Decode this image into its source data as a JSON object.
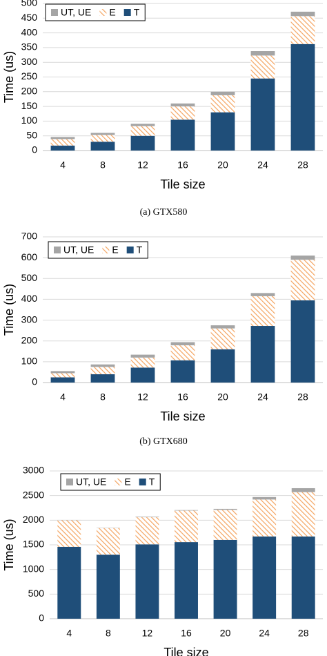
{
  "chart_data": [
    {
      "type": "stacked_bar",
      "caption": "(a)  GTX580",
      "xlabel": "Tile size",
      "ylabel": "Time (us)",
      "categories": [
        "4",
        "8",
        "12",
        "16",
        "20",
        "24",
        "28"
      ],
      "series": [
        {
          "name": "UT, UE",
          "color": "#a5a5a5",
          "values": [
            7,
            7,
            8,
            10,
            12,
            15,
            15
          ]
        },
        {
          "name": "E",
          "color": "#f4a460",
          "pattern": "hatch",
          "values": [
            22,
            23,
            33,
            45,
            58,
            78,
            95
          ]
        },
        {
          "name": "T",
          "color": "#1f4e79",
          "values": [
            17,
            30,
            50,
            105,
            130,
            245,
            362
          ]
        }
      ],
      "ylim": [
        0,
        500
      ],
      "yticks": [
        0,
        50,
        100,
        150,
        200,
        250,
        300,
        350,
        400,
        450,
        500
      ],
      "grid": true,
      "legend": "top-left"
    },
    {
      "type": "stacked_bar",
      "caption": "(b)  GTX680",
      "xlabel": "Tile size",
      "ylabel": "Time (us)",
      "categories": [
        "4",
        "8",
        "12",
        "16",
        "20",
        "24",
        "28"
      ],
      "series": [
        {
          "name": "UT, UE",
          "color": "#a5a5a5",
          "values": [
            10,
            12,
            14,
            15,
            15,
            15,
            20
          ]
        },
        {
          "name": "E",
          "color": "#f4a460",
          "pattern": "hatch",
          "values": [
            20,
            35,
            48,
            72,
            100,
            143,
            195
          ]
        },
        {
          "name": "T",
          "color": "#1f4e79",
          "values": [
            25,
            40,
            72,
            107,
            160,
            272,
            395
          ]
        }
      ],
      "ylim": [
        0,
        700
      ],
      "yticks": [
        0,
        100,
        200,
        300,
        400,
        500,
        600,
        700
      ],
      "grid": true,
      "legend": "top-left"
    },
    {
      "type": "stacked_bar",
      "xlabel": "Tile size",
      "ylabel": "Time (us)",
      "categories": [
        "4",
        "8",
        "12",
        "16",
        "20",
        "24",
        "28"
      ],
      "series": [
        {
          "name": "UT, UE",
          "color": "#a5a5a5",
          "values": [
            5,
            5,
            10,
            10,
            20,
            50,
            80
          ]
        },
        {
          "name": "E",
          "color": "#f4a460",
          "pattern": "hatch",
          "values": [
            540,
            540,
            550,
            640,
            610,
            750,
            900
          ]
        },
        {
          "name": "T",
          "color": "#1f4e79",
          "values": [
            1460,
            1300,
            1510,
            1555,
            1600,
            1670,
            1670
          ]
        }
      ],
      "ylim": [
        0,
        3000
      ],
      "yticks": [
        0,
        500,
        1000,
        1500,
        2000,
        2500,
        3000
      ],
      "grid": true,
      "legend": "top-left"
    }
  ]
}
